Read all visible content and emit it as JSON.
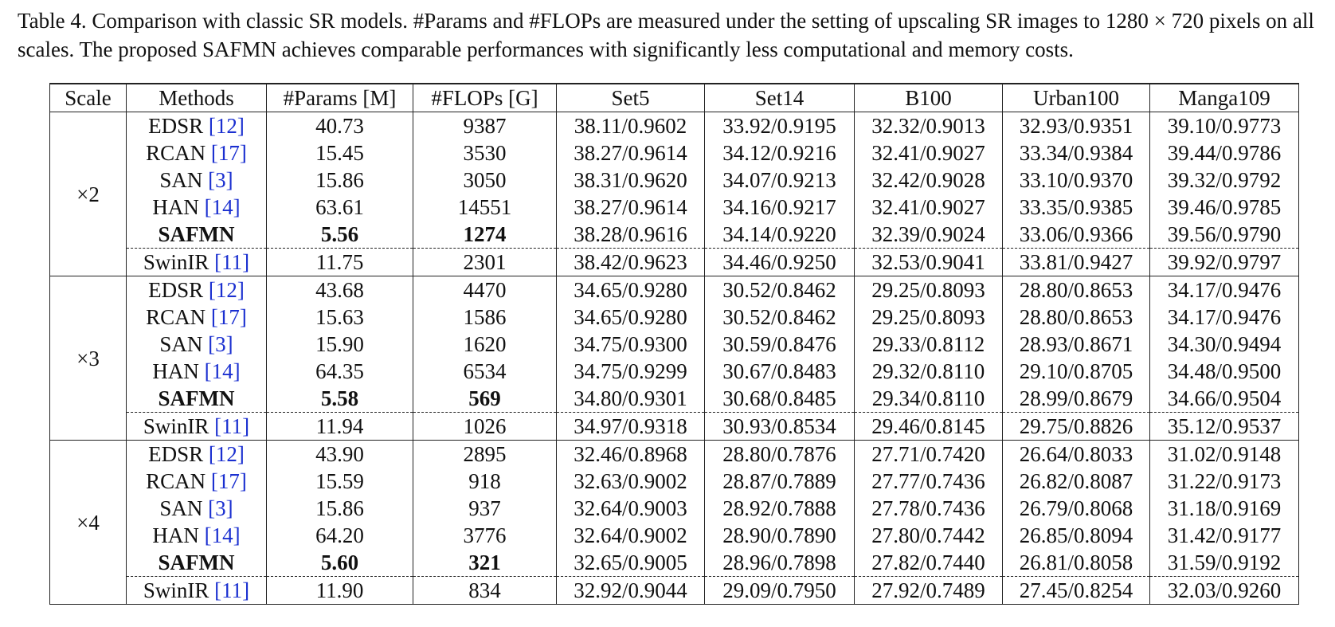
{
  "caption": "Table 4. Comparison with classic SR models. #Params and #FLOPs are measured under the setting of upscaling SR images to 1280 × 720 pixels on all scales. The proposed SAFMN achieves comparable performances with significantly less computational and memory costs.",
  "table": {
    "header": [
      "Scale",
      "Methods",
      "#Params [M]",
      "#FLOPs [G]",
      "Set5",
      "Set14",
      "B100",
      "Urban100",
      "Manga109"
    ],
    "groups": [
      {
        "scale": "×2",
        "rows": [
          {
            "method": "EDSR",
            "ref": "[12]",
            "cells": [
              "40.73",
              "9387",
              "38.11/0.9602",
              "33.92/0.9195",
              "32.32/0.9013",
              "32.93/0.9351",
              "39.10/0.9773"
            ]
          },
          {
            "method": "RCAN",
            "ref": "[17]",
            "cells": [
              "15.45",
              "3530",
              "38.27/0.9614",
              "34.12/0.9216",
              "32.41/0.9027",
              "33.34/0.9384",
              "39.44/0.9786"
            ]
          },
          {
            "method": "SAN",
            "ref": "[3]",
            "cells": [
              "15.86",
              "3050",
              "38.31/0.9620",
              "34.07/0.9213",
              "32.42/0.9028",
              "33.10/0.9370",
              "39.32/0.9792"
            ]
          },
          {
            "method": "HAN",
            "ref": "[14]",
            "cells": [
              "63.61",
              "14551",
              "38.27/0.9614",
              "34.16/0.9217",
              "32.41/0.9027",
              "33.35/0.9385",
              "39.46/0.9785"
            ]
          },
          {
            "method": "SAFMN",
            "bold": true,
            "cells": [
              "5.56",
              "1274",
              "38.28/0.9616",
              "34.14/0.9220",
              "32.39/0.9024",
              "33.06/0.9366",
              "39.56/0.9790"
            ]
          },
          {
            "method": "SwinIR",
            "ref": "[11]",
            "dashed_above": true,
            "cells": [
              "11.75",
              "2301",
              "38.42/0.9623",
              "34.46/0.9250",
              "32.53/0.9041",
              "33.81/0.9427",
              "39.92/0.9797"
            ]
          }
        ]
      },
      {
        "scale": "×3",
        "rows": [
          {
            "method": "EDSR",
            "ref": "[12]",
            "cells": [
              "43.68",
              "4470",
              "34.65/0.9280",
              "30.52/0.8462",
              "29.25/0.8093",
              "28.80/0.8653",
              "34.17/0.9476"
            ]
          },
          {
            "method": "RCAN",
            "ref": "[17]",
            "cells": [
              "15.63",
              "1586",
              "34.65/0.9280",
              "30.52/0.8462",
              "29.25/0.8093",
              "28.80/0.8653",
              "34.17/0.9476"
            ]
          },
          {
            "method": "SAN",
            "ref": "[3]",
            "cells": [
              "15.90",
              "1620",
              "34.75/0.9300",
              "30.59/0.8476",
              "29.33/0.8112",
              "28.93/0.8671",
              "34.30/0.9494"
            ]
          },
          {
            "method": "HAN",
            "ref": "[14]",
            "cells": [
              "64.35",
              "6534",
              "34.75/0.9299",
              "30.67/0.8483",
              "29.32/0.8110",
              "29.10/0.8705",
              "34.48/0.9500"
            ]
          },
          {
            "method": "SAFMN",
            "bold": true,
            "cells": [
              "5.58",
              "569",
              "34.80/0.9301",
              "30.68/0.8485",
              "29.34/0.8110",
              "28.99/0.8679",
              "34.66/0.9504"
            ]
          },
          {
            "method": "SwinIR",
            "ref": "[11]",
            "dashed_above": true,
            "cells": [
              "11.94",
              "1026",
              "34.97/0.9318",
              "30.93/0.8534",
              "29.46/0.8145",
              "29.75/0.8826",
              "35.12/0.9537"
            ]
          }
        ]
      },
      {
        "scale": "×4",
        "rows": [
          {
            "method": "EDSR",
            "ref": "[12]",
            "cells": [
              "43.90",
              "2895",
              "32.46/0.8968",
              "28.80/0.7876",
              "27.71/0.7420",
              "26.64/0.8033",
              "31.02/0.9148"
            ]
          },
          {
            "method": "RCAN",
            "ref": "[17]",
            "cells": [
              "15.59",
              "918",
              "32.63/0.9002",
              "28.87/0.7889",
              "27.77/0.7436",
              "26.82/0.8087",
              "31.22/0.9173"
            ]
          },
          {
            "method": "SAN",
            "ref": "[3]",
            "cells": [
              "15.86",
              "937",
              "32.64/0.9003",
              "28.92/0.7888",
              "27.78/0.7436",
              "26.79/0.8068",
              "31.18/0.9169"
            ]
          },
          {
            "method": "HAN",
            "ref": "[14]",
            "cells": [
              "64.20",
              "3776",
              "32.64/0.9002",
              "28.90/0.7890",
              "27.80/0.7442",
              "26.85/0.8094",
              "31.42/0.9177"
            ]
          },
          {
            "method": "SAFMN",
            "bold": true,
            "cells": [
              "5.60",
              "321",
              "32.65/0.9005",
              "28.96/0.7898",
              "27.82/0.7440",
              "26.81/0.8058",
              "31.59/0.9192"
            ]
          },
          {
            "method": "SwinIR",
            "ref": "[11]",
            "dashed_above": true,
            "cells": [
              "11.90",
              "834",
              "32.92/0.9044",
              "29.09/0.7950",
              "27.92/0.7489",
              "27.45/0.8254",
              "32.03/0.9260"
            ]
          }
        ]
      }
    ]
  }
}
